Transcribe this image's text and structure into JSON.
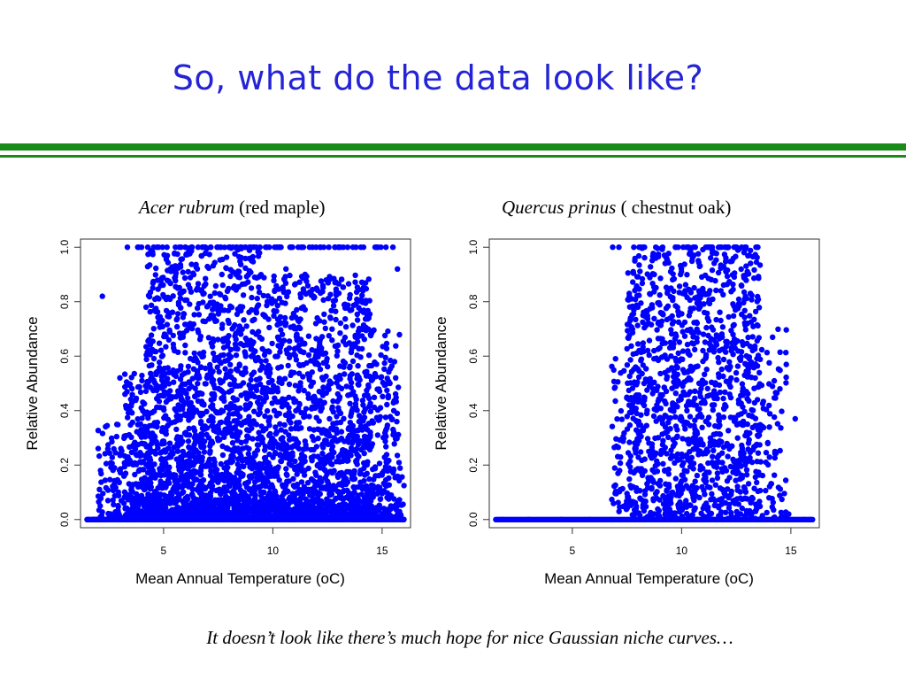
{
  "slide": {
    "title": "So, what do the data look like?",
    "caption": "It doesn’t look like there’s much hope for nice Gaussian niche curves…",
    "title_color": "#2424d6",
    "rule_color": "#1a8a1a"
  },
  "chart_data": [
    {
      "type": "scatter",
      "species_name": "Acer rubrum",
      "common_name": "(red maple)",
      "xlabel": "Mean Annual Temperature (oC)",
      "ylabel": "Relative Abundance",
      "xlim": [
        1.2,
        16.3
      ],
      "ylim": [
        -0.03,
        1.03
      ],
      "x_ticks": [
        "5",
        "10",
        "15"
      ],
      "y_ticks": [
        "0.0",
        "0.2",
        "0.4",
        "0.6",
        "0.8",
        "1.0"
      ],
      "point_color": "#0000ff",
      "x_range": [
        1.5,
        16.0
      ],
      "series": [
        {
          "values": [
            [
              1.8,
              0.0
            ],
            [
              2.4,
              0.0
            ],
            [
              3.1,
              0.0
            ],
            [
              3.5,
              0.03
            ],
            [
              4.0,
              0.12
            ],
            [
              4.6,
              0.25
            ],
            [
              5.0,
              0.41
            ],
            [
              5.5,
              0.62
            ],
            [
              6.2,
              0.85
            ],
            [
              7.0,
              0.52
            ],
            [
              7.5,
              1.0
            ],
            [
              8.1,
              0.33
            ],
            [
              8.8,
              0.71
            ],
            [
              9.4,
              0.18
            ],
            [
              10.0,
              0.47
            ],
            [
              10.6,
              0.92
            ],
            [
              11.2,
              0.26
            ],
            [
              11.9,
              0.58
            ],
            [
              12.5,
              0.14
            ],
            [
              13.1,
              0.39
            ],
            [
              13.6,
              0.77
            ],
            [
              14.2,
              0.08
            ],
            [
              14.8,
              0.31
            ],
            [
              15.4,
              0.05
            ],
            [
              15.9,
              0.0
            ],
            [
              6.8,
              0.05
            ],
            [
              9.1,
              0.02
            ],
            [
              12.0,
              0.04
            ],
            [
              3.0,
              0.52
            ],
            [
              4.2,
              0.78
            ],
            [
              2.2,
              0.82
            ],
            [
              15.7,
              0.92
            ],
            [
              5.8,
              1.0
            ],
            [
              10.9,
              1.0
            ],
            [
              13.0,
              1.0
            ]
          ]
        }
      ]
    },
    {
      "type": "scatter",
      "species_name": "Quercus prinus",
      "common_name": "( chestnut oak)",
      "xlabel": "Mean Annual Temperature (oC)",
      "ylabel": "Relative Abundance",
      "xlim": [
        1.2,
        16.3
      ],
      "ylim": [
        -0.03,
        1.03
      ],
      "x_ticks": [
        "5",
        "10",
        "15"
      ],
      "y_ticks": [
        "0.0",
        "0.2",
        "0.4",
        "0.6",
        "0.8",
        "1.0"
      ],
      "point_color": "#0000ff",
      "x_range": [
        1.5,
        16.0
      ],
      "series": [
        {
          "values": [
            [
              1.8,
              0.0
            ],
            [
              3.0,
              0.0
            ],
            [
              4.5,
              0.0
            ],
            [
              5.8,
              0.0
            ],
            [
              6.8,
              0.0
            ],
            [
              7.2,
              0.11
            ],
            [
              7.6,
              0.42
            ],
            [
              8.0,
              0.78
            ],
            [
              8.5,
              0.25
            ],
            [
              9.0,
              0.63
            ],
            [
              9.5,
              0.91
            ],
            [
              10.0,
              0.37
            ],
            [
              10.5,
              0.55
            ],
            [
              11.0,
              0.68
            ],
            [
              11.4,
              0.21
            ],
            [
              11.8,
              0.84
            ],
            [
              12.2,
              0.46
            ],
            [
              12.7,
              0.15
            ],
            [
              13.1,
              0.97
            ],
            [
              13.5,
              0.33
            ],
            [
              14.0,
              0.08
            ],
            [
              14.5,
              0.48
            ],
            [
              14.9,
              0.02
            ],
            [
              15.2,
              0.37
            ],
            [
              15.6,
              0.0
            ],
            [
              15.9,
              0.0
            ],
            [
              10.8,
              0.5
            ],
            [
              11.2,
              0.12
            ],
            [
              8.3,
              1.0
            ],
            [
              12.9,
              1.0
            ]
          ]
        }
      ]
    }
  ]
}
